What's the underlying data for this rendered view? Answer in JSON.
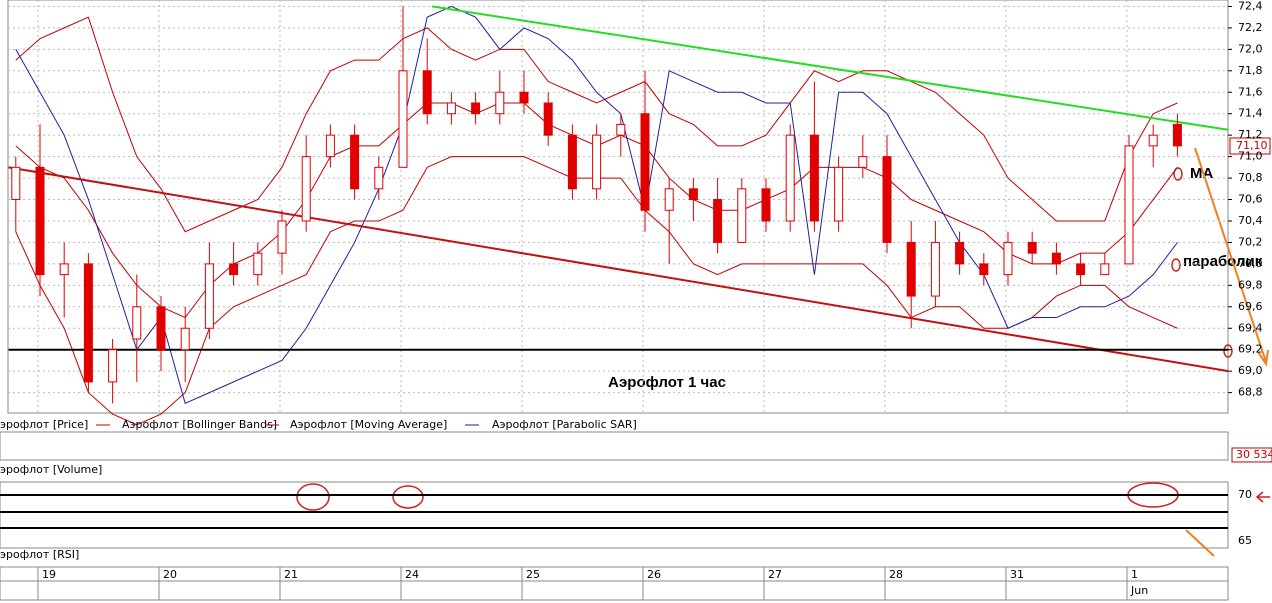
{
  "chart_data": {
    "type": "candlestick",
    "price_name": "эрофлот [Price]",
    "volume_name": "эрофлот [Volume]",
    "rsi_name": "эрофлот [RSI]",
    "annotations": [
      "Аэрофлот   1 час",
      "MA",
      "параболик"
    ],
    "last_price_label": "71,10",
    "volume_label": "30 534",
    "month_label": "Jun",
    "up_color": "#ffffff",
    "down_color": "#e00000",
    "categories": [
      null,
      "19",
      null,
      null,
      null,
      null,
      "20",
      null,
      null,
      null,
      null,
      "21",
      null,
      null,
      null,
      null,
      "24",
      null,
      null,
      null,
      null,
      "25",
      null,
      null,
      null,
      null,
      "26",
      null,
      null,
      null,
      null,
      "27",
      null,
      null,
      null,
      null,
      "28",
      null,
      null,
      null,
      null,
      "31",
      null,
      null,
      null,
      null,
      "1",
      null,
      null
    ],
    "open": [
      70.6,
      70.9,
      69.9,
      70.0,
      68.9,
      69.3,
      69.6,
      69.2,
      69.4,
      70.0,
      69.9,
      70.1,
      70.4,
      71.0,
      71.2,
      70.7,
      70.9,
      71.8,
      71.4,
      71.5,
      71.4,
      71.6,
      71.5,
      71.2,
      70.7,
      71.2,
      71.4,
      70.5,
      70.7,
      70.6,
      70.2,
      70.7,
      70.4,
      71.2,
      70.4,
      70.9,
      71.0,
      70.2,
      69.7,
      70.2,
      70.0,
      69.9,
      70.2,
      70.1,
      70.0,
      69.9,
      70.0,
      71.1,
      71.3
    ],
    "high": [
      71.0,
      71.3,
      70.2,
      70.1,
      69.3,
      69.9,
      69.7,
      69.6,
      70.2,
      70.2,
      70.2,
      70.5,
      71.2,
      71.3,
      71.3,
      71.0,
      72.4,
      72.1,
      71.6,
      71.6,
      71.8,
      71.8,
      71.6,
      71.3,
      71.3,
      71.4,
      71.8,
      70.8,
      70.8,
      70.8,
      70.8,
      70.8,
      71.3,
      71.7,
      71.0,
      71.2,
      71.2,
      70.4,
      70.4,
      70.3,
      70.1,
      70.3,
      70.3,
      70.2,
      70.1,
      70.1,
      71.2,
      71.3,
      71.4
    ],
    "low": [
      70.3,
      69.7,
      69.5,
      68.8,
      68.7,
      68.9,
      69.0,
      68.9,
      69.3,
      69.8,
      69.8,
      69.9,
      70.3,
      70.9,
      70.6,
      70.6,
      70.9,
      71.3,
      71.3,
      71.3,
      71.3,
      71.4,
      71.1,
      70.6,
      70.6,
      71.0,
      70.3,
      70.0,
      70.4,
      70.1,
      70.2,
      70.3,
      70.3,
      70.3,
      70.3,
      70.8,
      70.1,
      69.4,
      69.6,
      69.9,
      69.8,
      69.8,
      70.0,
      69.9,
      69.8,
      69.9,
      70.0,
      70.9,
      71.0
    ],
    "close": [
      70.9,
      69.9,
      70.0,
      68.9,
      69.2,
      69.6,
      69.2,
      69.4,
      70.0,
      69.9,
      70.1,
      70.4,
      71.0,
      71.2,
      70.7,
      70.9,
      71.8,
      71.4,
      71.5,
      71.4,
      71.6,
      71.5,
      71.2,
      70.7,
      71.2,
      71.3,
      70.5,
      70.7,
      70.6,
      70.2,
      70.7,
      70.4,
      71.2,
      70.4,
      70.9,
      71.0,
      70.2,
      69.7,
      70.2,
      70.0,
      69.9,
      70.2,
      70.1,
      70.0,
      69.9,
      70.0,
      71.1,
      71.2,
      71.1
    ],
    "indicators": [
      {
        "name": "Аэрофлот [Bollinger Bands]",
        "color": "#c00000",
        "lines": [
          [
            71.9,
            72.1,
            72.2,
            72.3,
            71.6,
            71.0,
            70.7,
            70.3,
            70.4,
            70.5,
            70.6,
            70.9,
            71.4,
            71.8,
            71.9,
            71.9,
            72.1,
            72.2,
            72.0,
            71.9,
            72.0,
            72.0,
            71.7,
            71.6,
            71.5,
            71.6,
            71.7,
            71.4,
            71.3,
            71.1,
            71.1,
            71.2,
            71.5,
            71.8,
            71.7,
            71.8,
            71.8,
            71.7,
            71.6,
            71.4,
            71.2,
            70.8,
            70.6,
            70.4,
            70.4,
            70.4,
            71.0,
            71.4,
            71.5
          ],
          [
            70.3,
            69.8,
            69.4,
            68.8,
            68.6,
            68.5,
            68.6,
            68.8,
            69.4,
            69.6,
            69.7,
            69.8,
            69.9,
            70.3,
            70.4,
            70.4,
            70.5,
            70.9,
            71.0,
            71.0,
            71.0,
            71.0,
            70.9,
            70.8,
            70.8,
            70.8,
            70.5,
            70.3,
            70.0,
            69.9,
            70.0,
            70.0,
            70.0,
            70.0,
            70.0,
            70.0,
            69.8,
            69.5,
            69.6,
            69.6,
            69.4,
            69.4,
            69.5,
            69.7,
            69.8,
            69.8,
            69.6,
            69.5,
            69.4
          ]
        ]
      },
      {
        "name": "Аэрофлот [Moving Average]",
        "color": "#c00000",
        "lines": [
          [
            71.1,
            70.9,
            70.8,
            70.5,
            70.1,
            69.8,
            69.6,
            69.5,
            69.8,
            70.0,
            70.1,
            70.3,
            70.6,
            71.0,
            71.1,
            71.1,
            71.3,
            71.5,
            71.5,
            71.4,
            71.5,
            71.5,
            71.3,
            71.2,
            71.1,
            71.2,
            71.1,
            70.8,
            70.6,
            70.5,
            70.5,
            70.6,
            70.7,
            70.9,
            70.9,
            70.9,
            70.8,
            70.6,
            70.5,
            70.4,
            70.3,
            70.1,
            70.0,
            70.0,
            70.1,
            70.1,
            70.3,
            70.6,
            70.9
          ]
        ]
      },
      {
        "name": "Аэрофлот [Parabolic SAR]",
        "color": "#2020a0",
        "lines": [
          [
            72.0,
            71.6,
            71.2,
            70.6,
            69.9,
            69.2,
            69.5,
            68.7,
            68.8,
            68.9,
            69.0,
            69.1,
            69.4,
            69.8,
            70.2,
            70.7,
            71.3,
            72.3,
            72.4,
            72.3,
            72.0,
            72.2,
            72.1,
            71.9,
            71.6,
            71.4,
            70.5,
            71.8,
            71.7,
            71.6,
            71.6,
            71.5,
            71.5,
            69.9,
            71.6,
            71.6,
            71.4,
            71.0,
            70.6,
            70.2,
            69.9,
            69.4,
            69.5,
            69.5,
            69.6,
            69.6,
            69.7,
            69.9,
            70.2
          ]
        ]
      }
    ],
    "trend_lines": [
      {
        "color": "#22dd22",
        "x": [
          17.2,
          50.1
        ],
        "values": [
          72.4,
          71.25
        ]
      },
      {
        "color": "#c01010",
        "x": [
          -0.3,
          50.1
        ],
        "values": [
          70.9,
          69.0
        ]
      },
      {
        "color": "#000000",
        "x": [
          -0.3,
          50.1
        ],
        "values": [
          69.2,
          69.2
        ]
      }
    ],
    "ylim": [
      68.61,
      72.46
    ],
    "yticks": [
      {
        "value": 72.4,
        "label": "72,4"
      },
      {
        "value": 72.2,
        "label": "72,2"
      },
      {
        "value": 72.0,
        "label": "72,0"
      },
      {
        "value": 71.8,
        "label": "71,8"
      },
      {
        "value": 71.6,
        "label": "71,6"
      },
      {
        "value": 71.4,
        "label": "71,4"
      },
      {
        "value": 71.2,
        "label": "71,2"
      },
      {
        "value": 71.0,
        "label": "71,0"
      },
      {
        "value": 70.8,
        "label": "70,8"
      },
      {
        "value": 70.6,
        "label": "70,6"
      },
      {
        "value": 70.4,
        "label": "70,4"
      },
      {
        "value": 70.2,
        "label": "70,2"
      },
      {
        "value": 70.0,
        "label": "70,0"
      },
      {
        "value": 69.8,
        "label": "69,8"
      },
      {
        "value": 69.6,
        "label": "69,6"
      },
      {
        "value": 69.4,
        "label": "69,4"
      },
      {
        "value": 69.2,
        "label": "69,2"
      },
      {
        "value": 69.0,
        "label": "69,0"
      },
      {
        "value": 68.8,
        "label": "68,8"
      }
    ],
    "rsi_ylim": [
      64.24,
      71.41
    ],
    "rsi_yticks": [
      70,
      65
    ]
  }
}
